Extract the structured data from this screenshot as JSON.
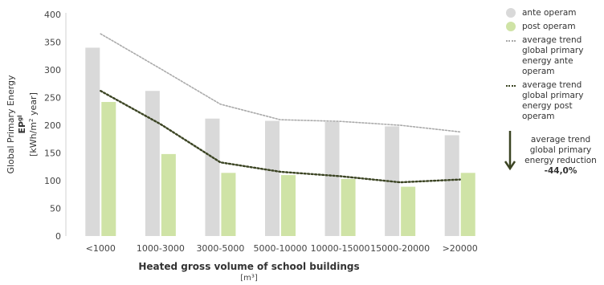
{
  "chart_data": {
    "type": "bar",
    "categories": [
      "<1000",
      "1000-3000",
      "3000-5000",
      "5000-10000",
      "10000-15000",
      "15000-20000",
      ">20000"
    ],
    "series": [
      {
        "name": "ante operam",
        "values": [
          340,
          262,
          212,
          208,
          206,
          198,
          182
        ],
        "color": "#d9d9d9"
      },
      {
        "name": "post operam",
        "values": [
          242,
          148,
          114,
          110,
          103,
          89,
          114
        ],
        "color": "#cfe3a6"
      }
    ],
    "trend_lines": [
      {
        "name": "average trend global primary energy ante operam",
        "values": [
          365,
          302,
          238,
          210,
          207,
          200,
          188
        ],
        "color": "#aaaaaa",
        "style": "dotted"
      },
      {
        "name": "average trend global primary energy post operam",
        "values": [
          262,
          202,
          133,
          116,
          108,
          97,
          102
        ],
        "color": "#3b4423",
        "style": "dotted"
      }
    ],
    "ylim": [
      0,
      400
    ],
    "yticks": [
      0,
      50,
      100,
      150,
      200,
      250,
      300,
      350,
      400
    ],
    "ylabel_lines": [
      "Global Primary Energy",
      "EP",
      "gl",
      "[kWh/m",
      "2",
      " year]"
    ],
    "xlabel": "Heated gross volume of school buildings",
    "xunit": "[m³]",
    "grid": false,
    "legend_position": "right"
  },
  "annotation": {
    "text": "average trend global primary energy reduction",
    "value": "-44,0%",
    "arrow_color": "#3b4423"
  }
}
